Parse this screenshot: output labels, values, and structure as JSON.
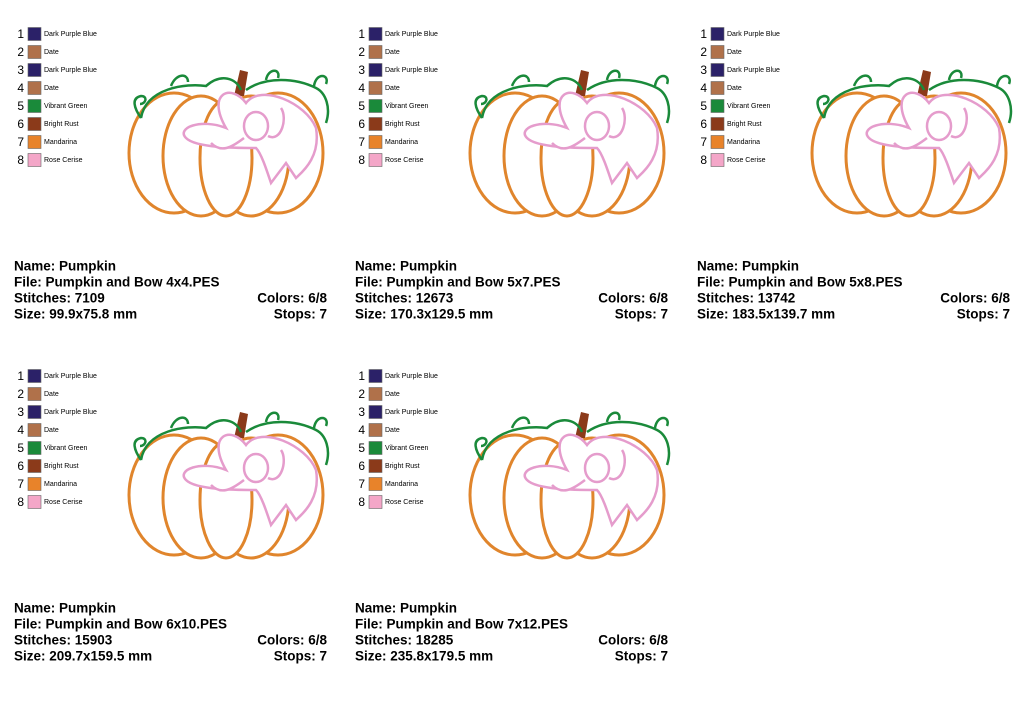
{
  "cards": [
    {
      "palette": [
        {
          "number": 1,
          "name": "Dark Purple Blue",
          "color": "#2b2168"
        },
        {
          "number": 2,
          "name": "Date",
          "color": "#b0714a"
        },
        {
          "number": 3,
          "name": "Dark Purple Blue",
          "color": "#2b2168"
        },
        {
          "number": 4,
          "name": "Date",
          "color": "#b0714a"
        },
        {
          "number": 5,
          "name": "Vibrant Green",
          "color": "#1a8a3a"
        },
        {
          "number": 6,
          "name": "Bright Rust",
          "color": "#8b3a1a"
        },
        {
          "number": 7,
          "name": "Mandarina",
          "color": "#e8832a"
        },
        {
          "number": 8,
          "name": "Rose Cerise",
          "color": "#f4a6c8"
        }
      ],
      "name": "Name: Pumpkin",
      "file": "File: Pumpkin and Bow 4x4.PES",
      "stitches": "Stitches: 7109",
      "colors": "Colors: 6/8",
      "size": "Size: 99.9x75.8 mm",
      "stops": "Stops: 7"
    },
    {
      "palette": [
        {
          "number": 1,
          "name": "Dark Purple Blue",
          "color": "#2b2168"
        },
        {
          "number": 2,
          "name": "Date",
          "color": "#b0714a"
        },
        {
          "number": 3,
          "name": "Dark Purple Blue",
          "color": "#2b2168"
        },
        {
          "number": 4,
          "name": "Date",
          "color": "#b0714a"
        },
        {
          "number": 5,
          "name": "Vibrant Green",
          "color": "#1a8a3a"
        },
        {
          "number": 6,
          "name": "Bright Rust",
          "color": "#8b3a1a"
        },
        {
          "number": 7,
          "name": "Mandarina",
          "color": "#e8832a"
        },
        {
          "number": 8,
          "name": "Rose Cerise",
          "color": "#f4a6c8"
        }
      ],
      "name": "Name: Pumpkin",
      "file": "File: Pumpkin and Bow 5x7.PES",
      "stitches": "Stitches: 12673",
      "colors": "Colors: 6/8",
      "size": "Size: 170.3x129.5 mm",
      "stops": "Stops: 7"
    },
    {
      "palette": [
        {
          "number": 1,
          "name": "Dark Purple Blue",
          "color": "#2b2168"
        },
        {
          "number": 2,
          "name": "Date",
          "color": "#b0714a"
        },
        {
          "number": 3,
          "name": "Dark Purple Blue",
          "color": "#2b2168"
        },
        {
          "number": 4,
          "name": "Date",
          "color": "#b0714a"
        },
        {
          "number": 5,
          "name": "Vibrant Green",
          "color": "#1a8a3a"
        },
        {
          "number": 6,
          "name": "Bright Rust",
          "color": "#8b3a1a"
        },
        {
          "number": 7,
          "name": "Mandarina",
          "color": "#e8832a"
        },
        {
          "number": 8,
          "name": "Rose Cerise",
          "color": "#f4a6c8"
        }
      ],
      "name": "Name: Pumpkin",
      "file": "File: Pumpkin and Bow 5x8.PES",
      "stitches": "Stitches: 13742",
      "colors": "Colors: 6/8",
      "size": "Size: 183.5x139.7 mm",
      "stops": "Stops: 7"
    },
    {
      "palette": [
        {
          "number": 1,
          "name": "Dark Purple Blue",
          "color": "#2b2168"
        },
        {
          "number": 2,
          "name": "Date",
          "color": "#b0714a"
        },
        {
          "number": 3,
          "name": "Dark Purple Blue",
          "color": "#2b2168"
        },
        {
          "number": 4,
          "name": "Date",
          "color": "#b0714a"
        },
        {
          "number": 5,
          "name": "Vibrant Green",
          "color": "#1a8a3a"
        },
        {
          "number": 6,
          "name": "Bright Rust",
          "color": "#8b3a1a"
        },
        {
          "number": 7,
          "name": "Mandarina",
          "color": "#e8832a"
        },
        {
          "number": 8,
          "name": "Rose Cerise",
          "color": "#f4a6c8"
        }
      ],
      "name": "Name: Pumpkin",
      "file": "File: Pumpkin and Bow 6x10.PES",
      "stitches": "Stitches: 15903",
      "colors": "Colors: 6/8",
      "size": "Size: 209.7x159.5 mm",
      "stops": "Stops: 7"
    },
    {
      "palette": [
        {
          "number": 1,
          "name": "Dark Purple Blue",
          "color": "#2b2168"
        },
        {
          "number": 2,
          "name": "Date",
          "color": "#b0714a"
        },
        {
          "number": 3,
          "name": "Dark Purple Blue",
          "color": "#2b2168"
        },
        {
          "number": 4,
          "name": "Date",
          "color": "#b0714a"
        },
        {
          "number": 5,
          "name": "Vibrant Green",
          "color": "#1a8a3a"
        },
        {
          "number": 6,
          "name": "Bright Rust",
          "color": "#8b3a1a"
        },
        {
          "number": 7,
          "name": "Mandarina",
          "color": "#e8832a"
        },
        {
          "number": 8,
          "name": "Rose Cerise",
          "color": "#f4a6c8"
        }
      ],
      "name": "Name: Pumpkin",
      "file": "File: Pumpkin and Bow 7x12.PES",
      "stitches": "Stitches: 18285",
      "colors": "Colors: 6/8",
      "size": "Size: 235.8x179.5 mm",
      "stops": "Stops: 7"
    }
  ]
}
